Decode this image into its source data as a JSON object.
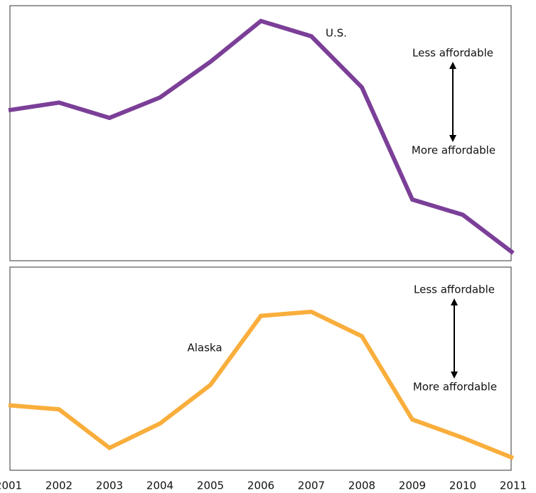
{
  "chart_data": [
    {
      "type": "line",
      "x": [
        2001,
        2002,
        2003,
        2004,
        2005,
        2006,
        2007,
        2008,
        2009,
        2010,
        2011
      ],
      "xlim": [
        2001,
        2011
      ],
      "ylim": [
        0,
        100
      ],
      "series": [
        {
          "name": "U.S.",
          "color": "#7b3f98",
          "values": [
            59,
            62,
            56,
            64,
            78,
            94,
            88,
            68,
            24,
            18,
            3
          ]
        }
      ],
      "annotations": [
        "Less affordable",
        "More affordable"
      ]
    },
    {
      "type": "line",
      "x": [
        2001,
        2002,
        2003,
        2004,
        2005,
        2006,
        2007,
        2008,
        2009,
        2010,
        2011
      ],
      "xlim": [
        2001,
        2011
      ],
      "xticks": [
        2001,
        2002,
        2003,
        2004,
        2005,
        2006,
        2007,
        2008,
        2009,
        2010,
        2011
      ],
      "ylim": [
        0,
        100
      ],
      "series": [
        {
          "name": "Alaska",
          "color": "#f9ae3c",
          "values": [
            32,
            30,
            11,
            23,
            42,
            76,
            78,
            66,
            25,
            16,
            6
          ]
        }
      ],
      "annotations": [
        "Less affordable",
        "More affordable"
      ]
    }
  ]
}
